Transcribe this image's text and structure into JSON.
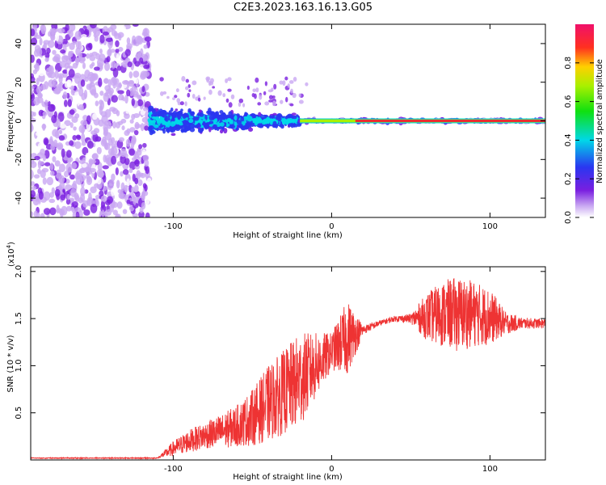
{
  "title": "C2E3.2023.163.16.13.G05",
  "colors": {
    "snr_line": "#ee3333",
    "axis": "#000000",
    "spectrogram_scatter": "#7a1fe0",
    "spectrogram_carrier": "#e83030"
  },
  "chart_data": [
    {
      "type": "heatmap",
      "name_of_panel": "spectrogram",
      "xlabel": "Height of straight line (km)",
      "ylabel": "Frequency (Hz)",
      "xlim": [
        -190,
        135
      ],
      "ylim": [
        -50,
        50
      ],
      "xticks": [
        -100,
        0,
        100
      ],
      "xtick_labels": [
        "-100",
        "0",
        "100"
      ],
      "yticks": [
        -40,
        -20,
        0,
        20,
        40
      ],
      "ytick_labels": [
        "-40",
        "-20",
        "0",
        "20",
        "40"
      ],
      "grid": false,
      "colorbar": {
        "label": "Normalized spectral amplitude",
        "range": [
          0,
          1
        ],
        "ticks": [
          0.0,
          0.2,
          0.4,
          0.6,
          0.8
        ],
        "tick_labels": [
          "0.0",
          "0.2",
          "0.4",
          "0.6",
          "0.8"
        ],
        "colormap": "rainbow"
      },
      "regions": [
        {
          "x": [
            -190,
            -115
          ],
          "description": "noise",
          "freq_range": [
            -50,
            50
          ]
        },
        {
          "x": [
            -115,
            -20
          ],
          "description": "scintillating signal",
          "freq_range": [
            -10,
            10
          ]
        },
        {
          "x": [
            -20,
            135
          ],
          "description": "stable carrier",
          "freq_center": 0
        }
      ]
    },
    {
      "type": "line",
      "name_of_panel": "snr",
      "xlabel": "Height of straight line (km)",
      "ylabel": "SNR (10 * v/v)",
      "y_multiplier": "(x10^4)",
      "xlim": [
        -190,
        135
      ],
      "ylim": [
        0,
        2.05
      ],
      "xticks": [
        -100,
        0,
        100
      ],
      "xtick_labels": [
        "-100",
        "0",
        "100"
      ],
      "yticks": [
        0.5,
        1.0,
        1.5,
        2.0
      ],
      "ytick_labels": [
        "0.5",
        "1.0",
        "1.5",
        "2.0"
      ],
      "grid": false,
      "series": [
        {
          "x": [
            -190,
            -160,
            -130,
            -110,
            -100,
            -90,
            -80,
            -70,
            -60,
            -50,
            -40,
            -30,
            -20,
            -10,
            0,
            10,
            20,
            30,
            40,
            50,
            60,
            70,
            80,
            90,
            100,
            110,
            120,
            135
          ],
          "values": [
            0.02,
            0.02,
            0.02,
            0.02,
            0.12,
            0.2,
            0.26,
            0.3,
            0.36,
            0.45,
            0.6,
            0.72,
            0.85,
            1.0,
            1.15,
            1.3,
            1.38,
            1.45,
            1.5,
            1.5,
            1.52,
            1.55,
            1.55,
            1.55,
            1.52,
            1.45,
            1.45,
            1.45
          ],
          "fluctuation_amplitude": [
            0,
            0,
            0,
            0,
            0.08,
            0.12,
            0.14,
            0.18,
            0.22,
            0.3,
            0.4,
            0.45,
            0.5,
            0.35,
            0.2,
            0.4,
            0.05,
            0.03,
            0.03,
            0.05,
            0.25,
            0.35,
            0.4,
            0.35,
            0.3,
            0.12,
            0.06,
            0.05
          ]
        }
      ]
    }
  ]
}
